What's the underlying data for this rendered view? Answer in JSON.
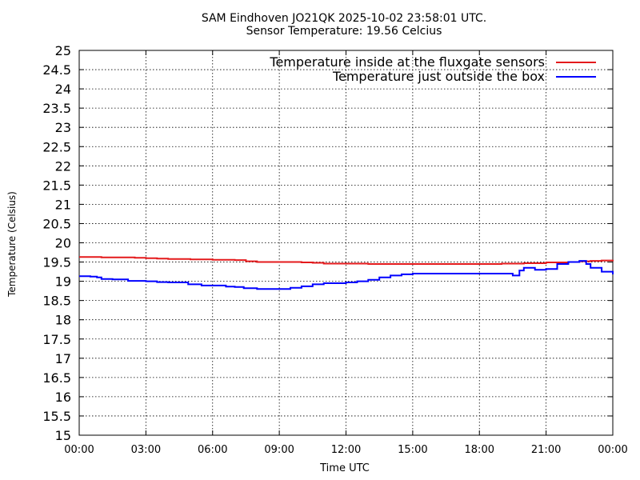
{
  "chart_data": {
    "type": "line",
    "title": "SAM Eindhoven JO21QK 2025-10-02 23:58:01 UTC.",
    "subtitle": "Sensor Temperature: 19.56 Celcius",
    "xlabel": "Time UTC",
    "ylabel": "Temperature (Celsius)",
    "x_unit": "hours UTC",
    "xlim": [
      0,
      24
    ],
    "ylim": [
      15,
      25
    ],
    "xticks": [
      "00:00",
      "03:00",
      "06:00",
      "09:00",
      "12:00",
      "15:00",
      "18:00",
      "21:00",
      "00:00"
    ],
    "yticks": [
      "15",
      "15.5",
      "16",
      "16.5",
      "17",
      "17.5",
      "18",
      "18.5",
      "19",
      "19.5",
      "20",
      "20.5",
      "21",
      "21.5",
      "22",
      "22.5",
      "23",
      "23.5",
      "24",
      "24.5",
      "25"
    ],
    "grid": true,
    "legend_position": "top-right",
    "series": [
      {
        "name": "Temperature inside at the fluxgate sensors",
        "color": "#e41a1c",
        "x": [
          0,
          0.5,
          1,
          1.5,
          2,
          2.5,
          3,
          3.5,
          4,
          5,
          6,
          7,
          7.5,
          8,
          9,
          10,
          10.5,
          11,
          12,
          13,
          14,
          15,
          16,
          17,
          18,
          19,
          20,
          21,
          22,
          22.5,
          23,
          23.5,
          24
        ],
        "values": [
          19.63,
          19.63,
          19.62,
          19.62,
          19.62,
          19.61,
          19.6,
          19.59,
          19.58,
          19.57,
          19.56,
          19.55,
          19.52,
          19.5,
          19.5,
          19.49,
          19.48,
          19.46,
          19.46,
          19.45,
          19.45,
          19.45,
          19.45,
          19.45,
          19.45,
          19.46,
          19.47,
          19.49,
          19.5,
          19.52,
          19.53,
          19.54,
          19.56
        ]
      },
      {
        "name": "Temperature just outside the box",
        "color": "#0000ff",
        "x": [
          0,
          0.5,
          0.8,
          1,
          1.5,
          2,
          2.2,
          3,
          3.5,
          4,
          4.9,
          5.5,
          6,
          6.6,
          7,
          7.4,
          8,
          9,
          9.5,
          10,
          10.5,
          11,
          12,
          12.5,
          13,
          13.5,
          14,
          14.5,
          15,
          16,
          17,
          18,
          19,
          19.5,
          19.8,
          20,
          20.5,
          21,
          21.5,
          22,
          22.5,
          22.8,
          23,
          23.5,
          24
        ],
        "values": [
          19.13,
          19.12,
          19.1,
          19.06,
          19.05,
          19.05,
          19.01,
          19.0,
          18.98,
          18.97,
          18.92,
          18.89,
          18.89,
          18.86,
          18.85,
          18.82,
          18.8,
          18.8,
          18.83,
          18.87,
          18.92,
          18.95,
          18.97,
          19.0,
          19.04,
          19.1,
          19.15,
          19.18,
          19.2,
          19.2,
          19.2,
          19.2,
          19.2,
          19.15,
          19.28,
          19.35,
          19.3,
          19.32,
          19.45,
          19.5,
          19.53,
          19.45,
          19.35,
          19.25,
          19.18
        ]
      }
    ]
  }
}
